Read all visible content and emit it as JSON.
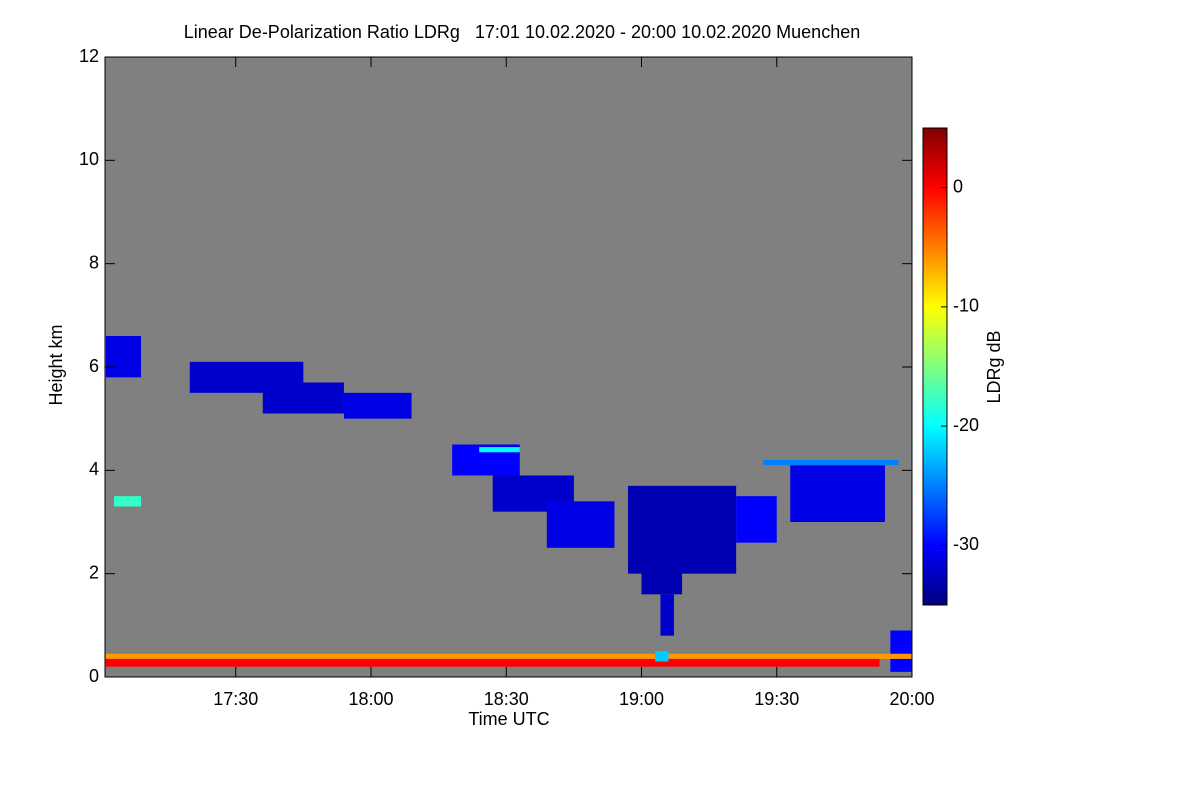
{
  "chart_data": {
    "type": "heatmap",
    "title": "Linear De-Polarization Ratio LDRg   17:01 10.02.2020 - 20:00 10.02.2020 Muenchen",
    "x_label": "Time UTC",
    "y_label": "Height km",
    "colorbar_label": "LDRg dB",
    "missing_color": "#808080",
    "xlim": [
      17.0167,
      20.0
    ],
    "xticks": [
      {
        "value": 17.5,
        "label": "17:30"
      },
      {
        "value": 18.0,
        "label": "18:00"
      },
      {
        "value": 18.5,
        "label": "18:30"
      },
      {
        "value": 19.0,
        "label": "19:00"
      },
      {
        "value": 19.5,
        "label": "19:30"
      },
      {
        "value": 20.0,
        "label": "20:00"
      }
    ],
    "ylim": [
      0,
      12
    ],
    "yticks": [
      0,
      2,
      4,
      6,
      8,
      10,
      12
    ],
    "clim": [
      -35,
      5
    ],
    "cticks": [
      -30,
      -20,
      -10,
      0
    ],
    "colormap": [
      "#00007f",
      "#0000ff",
      "#007fff",
      "#00ffff",
      "#7fff7f",
      "#ffff00",
      "#ff7f00",
      "#ff0000",
      "#7f0000"
    ],
    "cells": [
      {
        "x": [
          17.02,
          17.15
        ],
        "y": [
          5.8,
          6.6
        ],
        "value": -31
      },
      {
        "x": [
          17.33,
          17.75
        ],
        "y": [
          5.5,
          6.1
        ],
        "value": -32
      },
      {
        "x": [
          17.6,
          17.9
        ],
        "y": [
          5.1,
          5.7
        ],
        "value": -32
      },
      {
        "x": [
          17.9,
          18.15
        ],
        "y": [
          5.0,
          5.5
        ],
        "value": -31
      },
      {
        "x": [
          18.3,
          18.55
        ],
        "y": [
          3.9,
          4.5
        ],
        "value": -30
      },
      {
        "x": [
          18.45,
          18.75
        ],
        "y": [
          3.2,
          3.9
        ],
        "value": -32
      },
      {
        "x": [
          18.65,
          18.9
        ],
        "y": [
          2.5,
          3.4
        ],
        "value": -31
      },
      {
        "x": [
          18.95,
          19.35
        ],
        "y": [
          2.0,
          3.7
        ],
        "value": -33
      },
      {
        "x": [
          19.0,
          19.15
        ],
        "y": [
          1.6,
          2.3
        ],
        "value": -33
      },
      {
        "x": [
          19.07,
          19.12
        ],
        "y": [
          0.8,
          1.6
        ],
        "value": -32
      },
      {
        "x": [
          19.35,
          19.5
        ],
        "y": [
          2.6,
          3.5
        ],
        "value": -30
      },
      {
        "x": [
          19.55,
          19.9
        ],
        "y": [
          3.0,
          4.1
        ],
        "value": -31
      },
      {
        "x": [
          19.92,
          20.0
        ],
        "y": [
          0.1,
          0.9
        ],
        "value": -30
      },
      {
        "x": [
          19.45,
          19.95
        ],
        "y": [
          4.1,
          4.2
        ],
        "value": -25
      },
      {
        "x": [
          18.4,
          18.55
        ],
        "y": [
          4.35,
          4.45
        ],
        "value": -20
      },
      {
        "x": [
          17.05,
          17.15
        ],
        "y": [
          3.3,
          3.5
        ],
        "value": -18
      },
      {
        "x": [
          17.02,
          20.0
        ],
        "y": [
          0.35,
          0.45
        ],
        "value": -6
      },
      {
        "x": [
          17.02,
          19.88
        ],
        "y": [
          0.2,
          0.35
        ],
        "value": 0
      },
      {
        "x": [
          19.05,
          19.1
        ],
        "y": [
          0.3,
          0.5
        ],
        "value": -22
      }
    ]
  }
}
